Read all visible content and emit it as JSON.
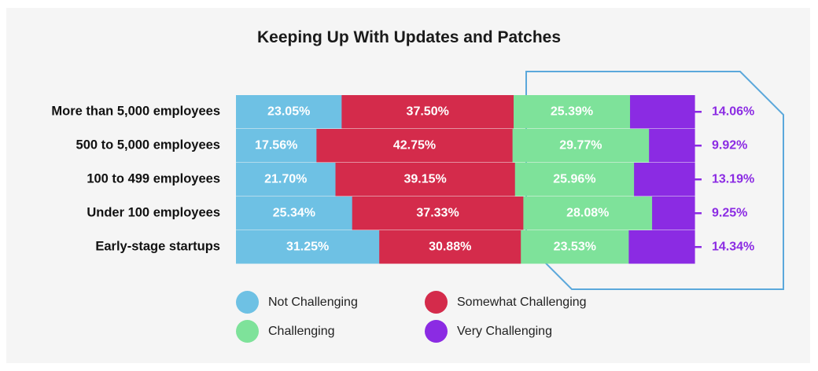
{
  "chart_data": {
    "type": "bar",
    "orientation": "horizontal",
    "stacked": true,
    "title": "Keeping Up With Updates and Patches",
    "categories": [
      "More than 5,000 employees",
      "500 to 5,000 employees",
      "100 to 499 employees",
      "Under 100 employees",
      "Early-stage startups"
    ],
    "series": [
      {
        "name": "Not Challenging",
        "color": "#6EC1E4",
        "values": [
          23.05,
          17.56,
          21.7,
          25.34,
          31.25
        ],
        "labels": [
          "23.05%",
          "17.56%",
          "21.70%",
          "25.34%",
          "31.25%"
        ]
      },
      {
        "name": "Somewhat Challenging",
        "color": "#D42B4B",
        "values": [
          37.5,
          42.75,
          39.15,
          37.33,
          30.88
        ],
        "labels": [
          "37.50%",
          "42.75%",
          "39.15%",
          "37.33%",
          "30.88%"
        ]
      },
      {
        "name": "Challenging",
        "color": "#7EE29A",
        "values": [
          25.39,
          29.77,
          25.96,
          28.08,
          23.53
        ],
        "labels": [
          "25.39%",
          "29.77%",
          "25.96%",
          "28.08%",
          "23.53%"
        ]
      },
      {
        "name": "Very Challenging",
        "color": "#8B2BE3",
        "values": [
          14.06,
          9.92,
          13.19,
          9.25,
          14.34
        ],
        "labels": [
          "14.06%",
          "9.92%",
          "13.19%",
          "9.25%",
          "14.34%"
        ]
      }
    ],
    "legend_position": "bottom",
    "grid": false,
    "xlim": [
      0,
      100
    ],
    "highlight_outline_color": "#5BA8DB"
  }
}
